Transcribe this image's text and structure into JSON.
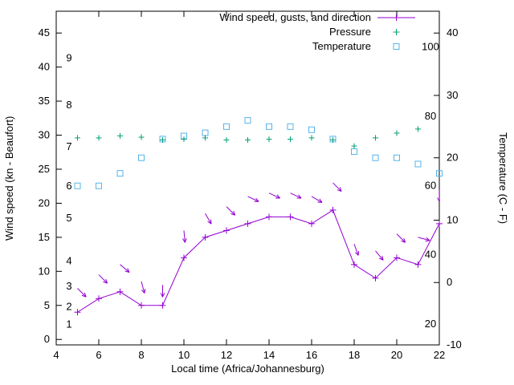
{
  "chart_data": {
    "type": "line",
    "title": "",
    "x_axis": {
      "label": "Local time (Africa/Johannesburg)",
      "min": 4,
      "max": 22,
      "ticks": [
        4,
        6,
        8,
        10,
        12,
        14,
        16,
        18,
        20,
        22
      ]
    },
    "left_axis": {
      "label": "Wind speed (kn - Beaufort)",
      "min": -0.8,
      "max": 48.2,
      "ticks": [
        0,
        5,
        10,
        15,
        20,
        25,
        30,
        35,
        40,
        45
      ],
      "beaufort": {
        "labels": [
          "1",
          "2",
          "3",
          "4",
          "5",
          "6",
          "7",
          "8",
          "9"
        ],
        "kn": [
          2.2,
          4.8,
          7.8,
          11.5,
          17.8,
          22.5,
          28.3,
          34.4,
          41.3
        ]
      }
    },
    "right_axis": {
      "label": "Temperature (C - F)",
      "min": -10,
      "max": 43.5,
      "ticks": [
        -10,
        0,
        10,
        20,
        30,
        40
      ],
      "fahrenheit_labels": [
        20,
        40,
        60,
        80,
        100
      ]
    },
    "legend": [
      {
        "label": "Wind speed, gusts, and direction",
        "style": "line-plus",
        "color": "#9400d3"
      },
      {
        "label": "Pressure",
        "style": "plus",
        "color": "#009e73"
      },
      {
        "label": "Temperature",
        "style": "open-square",
        "color": "#56b4e9"
      }
    ],
    "colors": {
      "wind": "#9400d3",
      "pressure": "#009e73",
      "temperature": "#56b4e9",
      "axis": "#000000"
    },
    "x": [
      5,
      6,
      7,
      8,
      9,
      10,
      11,
      12,
      13,
      14,
      15,
      16,
      17,
      18,
      19,
      20,
      21,
      22
    ],
    "series": {
      "wind_speed_kn": [
        4,
        6,
        7,
        5,
        5,
        12,
        15,
        16,
        17,
        18,
        18,
        17,
        19,
        11,
        9,
        12,
        11,
        17
      ],
      "gust_kn": [
        7.5,
        9.5,
        11,
        8.5,
        8,
        16,
        18.5,
        19.5,
        21,
        21.5,
        21.5,
        21,
        23,
        14,
        13,
        15.5,
        15,
        22
      ],
      "gust_direction_deg": [
        135,
        135,
        130,
        165,
        180,
        175,
        150,
        135,
        115,
        115,
        115,
        120,
        135,
        160,
        140,
        135,
        105,
        180
      ],
      "pressure_left_axis_units": [
        29.6,
        29.6,
        29.9,
        29.7,
        29.3,
        29.4,
        29.6,
        29.3,
        29.3,
        29.4,
        29.4,
        29.6,
        29.3,
        28.4,
        29.6,
        30.3,
        30.9,
        null
      ],
      "temperature_c": [
        15.5,
        15.5,
        17.5,
        20,
        23,
        23.5,
        24,
        25,
        26,
        25,
        25,
        24.5,
        23,
        21,
        20,
        20,
        19,
        17.5
      ]
    }
  }
}
